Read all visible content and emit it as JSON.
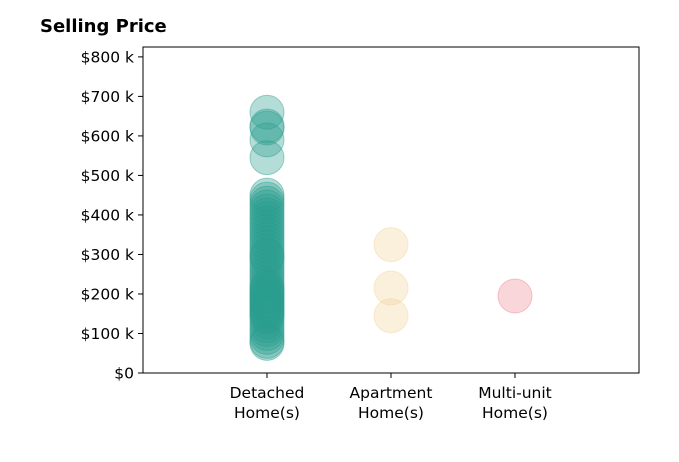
{
  "chart_data": {
    "type": "scatter",
    "title": "Selling Price",
    "xlabel": "",
    "ylabel": "",
    "categories": [
      [
        "Detached",
        "Home(s)"
      ],
      [
        "Apartment",
        "Home(s)"
      ],
      [
        "Multi-unit",
        "Home(s)"
      ]
    ],
    "yticks": [
      0,
      100,
      200,
      300,
      400,
      500,
      600,
      700,
      800
    ],
    "ytick_labels": [
      "$0",
      "$100 k",
      "$200 k",
      "$300 k",
      "$400 k",
      "$500 k",
      "$600 k",
      "$700 k",
      "$800 k"
    ],
    "ylim": [
      0,
      825
    ],
    "xlim": [
      -1,
      3
    ],
    "grid": false,
    "series": [
      {
        "category": 0,
        "color": "#2a9d8f",
        "values": [
          660,
          625,
          620,
          590,
          545,
          450,
          440,
          430,
          420,
          410,
          400,
          390,
          380,
          370,
          360,
          350,
          340,
          330,
          320,
          310,
          300,
          295,
          290,
          280,
          270,
          260,
          250,
          240,
          230,
          220,
          215,
          210,
          205,
          200,
          195,
          190,
          185,
          180,
          175,
          170,
          165,
          160,
          155,
          150,
          145,
          140,
          130,
          120,
          110,
          100,
          90,
          80,
          75
        ]
      },
      {
        "category": 1,
        "color": "#f2d49b",
        "values": [
          325,
          215,
          145
        ]
      },
      {
        "category": 2,
        "color": "#eb8a96",
        "values": [
          195
        ]
      }
    ]
  }
}
